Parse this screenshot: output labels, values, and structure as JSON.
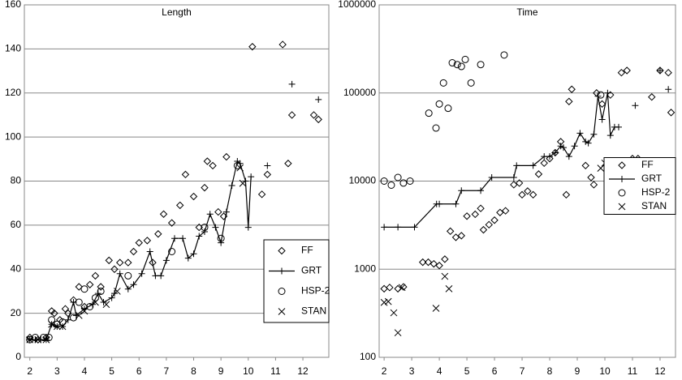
{
  "chart_data": [
    {
      "type": "scatter",
      "title": "Length",
      "xlim": [
        1.8,
        12.95
      ],
      "xticks": [
        2,
        3,
        4,
        5,
        6,
        7,
        8,
        9,
        10,
        11,
        12
      ],
      "ylim": [
        0,
        160
      ],
      "yticks": [
        0,
        20,
        40,
        60,
        80,
        100,
        120,
        140,
        160
      ],
      "grid": true,
      "legend": "lower right",
      "series": [
        {
          "name": "FF",
          "color": "#000000",
          "marker": "diamond",
          "line": false,
          "x": [
            2.0,
            2.3,
            2.6,
            2.8,
            2.9,
            3.1,
            3.3,
            3.4,
            3.6,
            3.8,
            4.0,
            4.2,
            4.4,
            4.6,
            4.9,
            5.1,
            5.3,
            5.6,
            5.8,
            6.0,
            6.3,
            6.5,
            6.7,
            6.9,
            7.2,
            7.5,
            7.7,
            8.0,
            8.2,
            8.4,
            8.5,
            8.7,
            8.9,
            9.1,
            9.2,
            10.15,
            10.5,
            10.7,
            11.26,
            11.46,
            11.6,
            12.4,
            12.57
          ],
          "values": [
            9,
            8,
            9,
            21,
            20,
            17,
            22,
            20,
            26,
            32,
            23,
            33,
            37,
            32,
            44,
            40,
            43,
            43,
            48,
            52,
            53,
            43,
            56,
            65,
            61,
            69,
            83,
            73,
            59,
            77,
            89,
            87,
            66,
            64,
            91,
            141,
            74,
            83,
            142,
            88,
            110,
            110,
            108
          ]
        },
        {
          "name": "GRT",
          "color": "#000000",
          "marker": "plus",
          "line": true,
          "x": [
            2.0,
            2.2,
            2.4,
            2.6,
            2.8,
            3.0,
            3.2,
            3.4,
            3.6,
            3.7,
            4.0,
            4.3,
            4.5,
            4.7,
            5.0,
            5.1,
            5.3,
            5.6,
            5.8,
            6.1,
            6.4,
            6.6,
            6.8,
            7.0,
            7.3,
            7.6,
            7.8,
            8.0,
            8.2,
            8.4,
            8.6,
            8.8,
            9.0,
            9.2,
            9.4,
            9.6,
            9.7,
            9.9,
            10.0,
            10.1,
            null,
            10.7,
            null,
            11.6,
            null,
            12.57
          ],
          "values": [
            8,
            8,
            8,
            8,
            15,
            14,
            14,
            17,
            25,
            19,
            22,
            24,
            29,
            25,
            27,
            29,
            38,
            31,
            33,
            38,
            48,
            37,
            37,
            44,
            54,
            54,
            45,
            47,
            55,
            57,
            65,
            59,
            52,
            66,
            78,
            89,
            88,
            80,
            59,
            82,
            null,
            87,
            null,
            124,
            null,
            117
          ]
        },
        {
          "name": "HSP-2",
          "color": "#000000",
          "marker": "circle",
          "line": false,
          "x": [
            2.0,
            2.2,
            2.5,
            2.7,
            2.8,
            3.0,
            3.2,
            3.6,
            3.8,
            4.0,
            4.2,
            4.4,
            4.6,
            5.6,
            7.2,
            8.4,
            9.0,
            9.6
          ],
          "values": [
            8,
            9,
            9,
            9,
            17,
            15,
            16,
            18,
            25,
            31,
            23,
            27,
            30,
            37,
            48,
            59,
            54,
            87
          ]
        },
        {
          "name": "STAN",
          "color": "#000000",
          "marker": "cross",
          "line": false,
          "x": [
            2.0,
            2.3,
            2.6,
            2.8,
            3.0,
            3.2,
            3.8,
            4.0,
            4.4,
            4.8,
            5.2,
            9.7,
            9.8
          ],
          "values": [
            8,
            8,
            8,
            15,
            14,
            14,
            19,
            21,
            25,
            24,
            30,
            86,
            79
          ]
        }
      ]
    },
    {
      "type": "scatter",
      "title": "Time",
      "xlim": [
        1.82,
        12.56
      ],
      "xticks": [
        2,
        3,
        4,
        5,
        6,
        7,
        8,
        9,
        10,
        11,
        12
      ],
      "ylim": [
        100,
        1000000
      ],
      "log": true,
      "yticks": [
        100,
        1000,
        10000,
        100000,
        1000000
      ],
      "grid": true,
      "legend": "center right",
      "series": [
        {
          "name": "FF",
          "color": "#000000",
          "marker": "diamond",
          "line": false,
          "x": [
            2.0,
            2.2,
            2.5,
            2.7,
            3.4,
            3.6,
            3.8,
            4.0,
            4.2,
            4.4,
            4.6,
            4.8,
            5.0,
            5.3,
            5.5,
            5.6,
            5.8,
            6.0,
            6.2,
            6.4,
            6.7,
            6.9,
            7.0,
            7.2,
            7.4,
            7.6,
            7.8,
            8.0,
            8.2,
            8.4,
            8.6,
            8.7,
            8.8,
            9.3,
            9.5,
            9.6,
            9.7,
            9.9,
            10.2,
            10.3,
            10.4,
            10.6,
            10.8,
            11.0,
            11.2,
            11.7,
            12.0,
            12.3,
            12.4
          ],
          "values": [
            600,
            620,
            600,
            630,
            1200,
            1200,
            1150,
            1100,
            1300,
            2700,
            2300,
            2400,
            4000,
            4200,
            4900,
            2800,
            3200,
            3600,
            4400,
            4600,
            9100,
            9500,
            7000,
            7700,
            7000,
            12000,
            16000,
            18000,
            21000,
            28000,
            7000,
            80000,
            110000,
            15000,
            11000,
            9100,
            100000,
            75000,
            95000,
            14000,
            16000,
            170000,
            180000,
            18000,
            18000,
            90000,
            180000,
            170000,
            60000
          ]
        },
        {
          "name": "GRT",
          "color": "#000000",
          "marker": "plus",
          "line": true,
          "x": [
            2.0,
            2.5,
            3.1,
            3.9,
            4.0,
            4.6,
            4.8,
            5.5,
            5.9,
            6.7,
            6.8,
            7.4,
            7.8,
            8.0,
            8.2,
            8.4,
            8.5,
            8.7,
            8.9,
            9.1,
            9.3,
            9.4,
            9.6,
            9.75,
            9.9,
            10.1,
            10.2,
            10.35,
            10.5,
            null,
            11.1,
            null,
            12.0,
            null,
            12.3
          ],
          "values": [
            3000,
            3000,
            3000,
            5500,
            5500,
            5500,
            7800,
            7800,
            11000,
            11000,
            15000,
            15000,
            19000,
            19000,
            21000,
            25000,
            24000,
            19000,
            25000,
            35000,
            28000,
            27000,
            34000,
            92000,
            50000,
            100000,
            33000,
            41000,
            41000,
            null,
            72000,
            null,
            180000,
            null,
            110000
          ]
        },
        {
          "name": "HSP-2",
          "color": "#000000",
          "marker": "circle",
          "line": false,
          "x": [
            2.0,
            2.26,
            2.5,
            2.7,
            2.94,
            3.62,
            3.88,
            4.0,
            4.15,
            4.32,
            4.47,
            4.65,
            4.8,
            4.94,
            5.15,
            5.5,
            6.35,
            9.85
          ],
          "values": [
            10000,
            9000,
            11000,
            9500,
            10000,
            59000,
            40000,
            75000,
            130000,
            67000,
            220000,
            210000,
            200000,
            240000,
            130000,
            210000,
            270000,
            95000
          ]
        },
        {
          "name": "STAN",
          "color": "#000000",
          "marker": "cross",
          "line": false,
          "x": [
            2.0,
            2.15,
            2.35,
            2.5,
            2.65,
            3.88,
            4.2,
            4.35,
            9.85,
            10.0
          ],
          "values": [
            420,
            430,
            320,
            190,
            620,
            360,
            830,
            600,
            14000,
            16000
          ]
        }
      ]
    }
  ]
}
